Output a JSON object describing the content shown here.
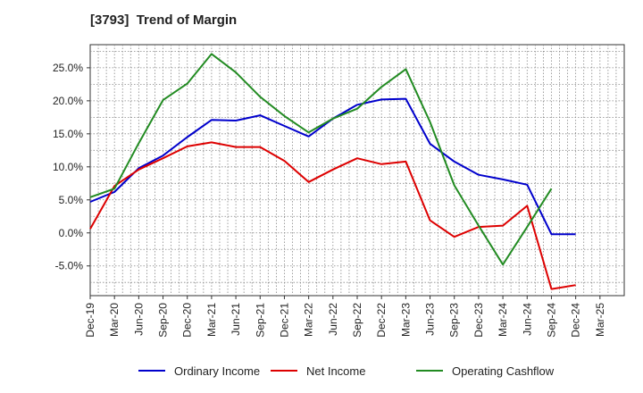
{
  "chart_data": {
    "type": "line",
    "title": "[3793]  Trend of Margin",
    "xlabel": "",
    "ylabel": "",
    "categories": [
      "Dec-19",
      "Mar-20",
      "Jun-20",
      "Sep-20",
      "Dec-20",
      "Mar-21",
      "Jun-21",
      "Sep-21",
      "Dec-21",
      "Mar-22",
      "Jun-22",
      "Sep-22",
      "Dec-22",
      "Mar-23",
      "Jun-23",
      "Sep-23",
      "Dec-23",
      "Mar-24",
      "Jun-24",
      "Sep-24",
      "Dec-24",
      "Mar-25"
    ],
    "yticks": [
      "-5.0%",
      "0.0%",
      "5.0%",
      "10.0%",
      "15.0%",
      "20.0%",
      "25.0%"
    ],
    "ytick_values": [
      -5,
      0,
      5,
      10,
      15,
      20,
      25
    ],
    "ylim": [
      -9.5,
      28.5
    ],
    "grid": true,
    "legend_position": "bottom",
    "series": [
      {
        "name": "Ordinary Income",
        "color": "#0000cc",
        "values": [
          4.7,
          6.2,
          9.8,
          11.7,
          14.5,
          17.1,
          17.0,
          17.8,
          16.2,
          14.6,
          17.3,
          19.4,
          20.2,
          20.3,
          13.5,
          10.8,
          8.8,
          8.1,
          7.3,
          -0.2,
          -0.2,
          null
        ]
      },
      {
        "name": "Net Income",
        "color": "#dd0000",
        "values": [
          0.6,
          7.1,
          9.6,
          11.3,
          13.1,
          13.7,
          13.0,
          13.0,
          10.9,
          7.7,
          9.6,
          11.3,
          10.4,
          10.8,
          1.9,
          -0.6,
          0.9,
          1.1,
          4.1,
          -8.5,
          -7.9,
          null
        ]
      },
      {
        "name": "Operating Cashflow",
        "color": "#228b22",
        "values": [
          5.4,
          6.7,
          13.6,
          20.1,
          22.6,
          27.1,
          24.3,
          20.6,
          17.7,
          15.2,
          17.3,
          18.8,
          22.1,
          24.8,
          16.8,
          7.2,
          1.1,
          -4.8,
          0.9,
          6.7,
          null,
          null
        ]
      }
    ]
  }
}
